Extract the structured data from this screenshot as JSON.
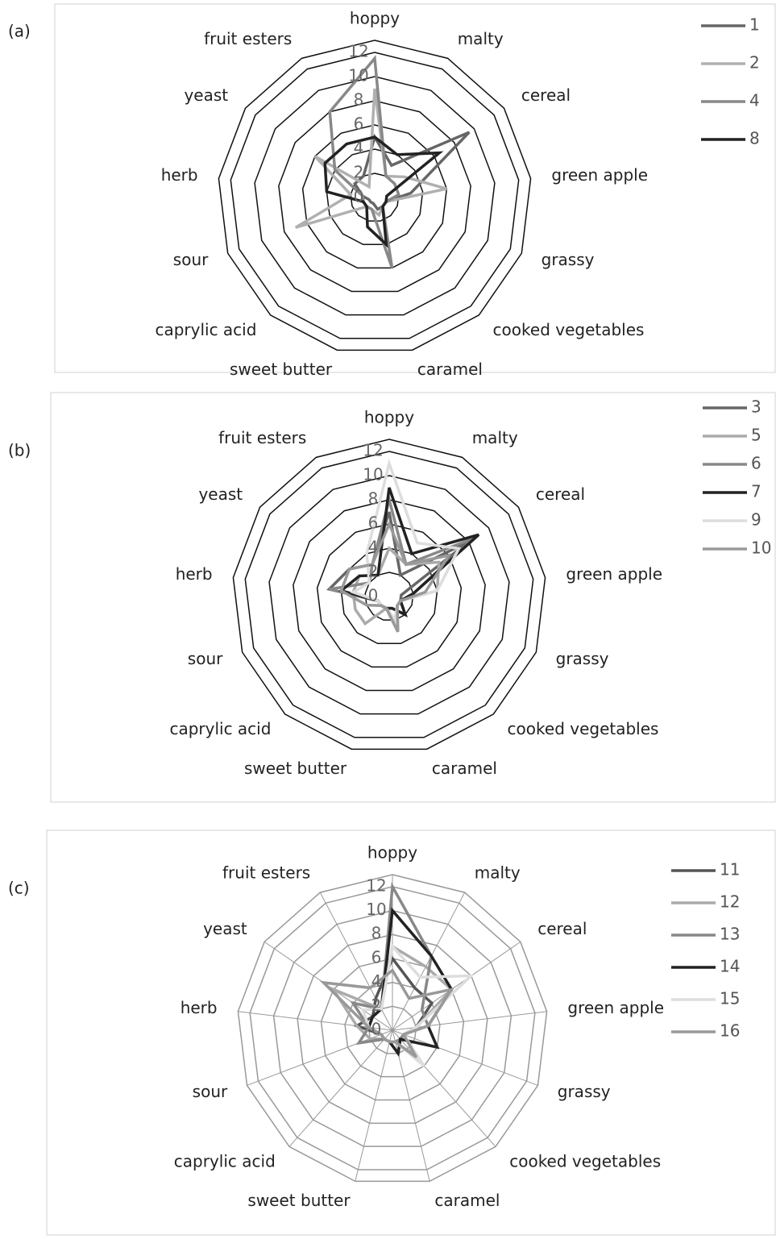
{
  "chart_data": [
    {
      "type": "radar",
      "label": "(a)",
      "categories": [
        "hoppy",
        "malty",
        "cereal",
        "green apple",
        "grassy",
        "cooked vegetables",
        "caramel",
        "sweet butter",
        "caprylic acid",
        "sour",
        "herb",
        "yeast",
        "fruit esters"
      ],
      "rlim": [
        0,
        13
      ],
      "rticks": [
        0,
        2,
        4,
        6,
        8,
        10,
        12
      ],
      "spokes": false,
      "series": [
        {
          "name": "1",
          "color": "#666666",
          "values": [
            5,
            3,
            9.5,
            3,
            1,
            1,
            1,
            0.5,
            0.5,
            0.5,
            1,
            2,
            2
          ]
        },
        {
          "name": "2",
          "color": "#b0b0b0",
          "values": [
            9,
            2,
            3,
            6,
            1,
            1,
            1.5,
            1,
            1,
            7,
            2,
            6,
            1
          ]
        },
        {
          "name": "4",
          "color": "#888888",
          "values": [
            11.5,
            2,
            2,
            2,
            1,
            1,
            6,
            1,
            1,
            1,
            1,
            4,
            8
          ]
        },
        {
          "name": "8",
          "color": "#222222",
          "values": [
            5,
            4,
            6.5,
            1,
            1,
            1,
            4,
            2.5,
            1,
            1,
            4,
            5,
            5
          ]
        }
      ]
    },
    {
      "type": "radar",
      "label": "(b)",
      "categories": [
        "hoppy",
        "malty",
        "cereal",
        "green apple",
        "grassy",
        "cooked vegetables",
        "caramel",
        "sweet butter",
        "caprylic acid",
        "sour",
        "herb",
        "yeast",
        "fruit esters"
      ],
      "rlim": [
        0,
        13
      ],
      "rticks": [
        0,
        2,
        4,
        6,
        8,
        10,
        12
      ],
      "spokes": false,
      "series": [
        {
          "name": "3",
          "color": "#666666",
          "values": [
            7,
            2,
            8,
            1,
            1,
            2,
            1,
            1,
            1,
            1,
            5,
            4,
            3
          ]
        },
        {
          "name": "5",
          "color": "#aaaaaa",
          "values": [
            4,
            3,
            5,
            4,
            1,
            1,
            3,
            1,
            3,
            3,
            3,
            3,
            2
          ]
        },
        {
          "name": "6",
          "color": "#888888",
          "values": [
            8,
            3,
            8.5,
            2,
            1,
            1,
            2,
            1,
            1,
            1,
            5,
            2,
            3
          ]
        },
        {
          "name": "7",
          "color": "#222222",
          "values": [
            9,
            4,
            9,
            2,
            1,
            2,
            1,
            1,
            1,
            1,
            4,
            3,
            2
          ]
        },
        {
          "name": "9",
          "color": "#dddddd",
          "values": [
            11,
            5,
            7,
            4,
            1,
            1,
            2,
            1,
            1,
            1,
            3,
            2,
            4
          ]
        },
        {
          "name": "10",
          "color": "#999999",
          "values": [
            6,
            3,
            6,
            3,
            1,
            1,
            3,
            1,
            1,
            2,
            4,
            4,
            3
          ]
        }
      ]
    },
    {
      "type": "radar",
      "label": "(c)",
      "categories": [
        "hoppy",
        "malty",
        "cereal",
        "green apple",
        "grassy",
        "cooked vegetables",
        "caramel",
        "sweet butter",
        "caprylic acid",
        "sour",
        "herb",
        "yeast",
        "fruit esters"
      ],
      "rlim": [
        0,
        13
      ],
      "rticks": [
        0,
        2,
        4,
        6,
        8,
        10,
        12
      ],
      "spokes": true,
      "series": [
        {
          "name": "11",
          "color": "#555555",
          "values": [
            6,
            4,
            4,
            2,
            1,
            1,
            1,
            1,
            1,
            1,
            3,
            2,
            3
          ]
        },
        {
          "name": "12",
          "color": "#aaaaaa",
          "values": [
            7,
            6,
            6,
            2,
            1,
            1,
            1,
            1,
            1,
            2,
            3,
            6,
            2
          ]
        },
        {
          "name": "13",
          "color": "#888888",
          "values": [
            12,
            7,
            3,
            3,
            1,
            1,
            1,
            1,
            1,
            3,
            2,
            4,
            2
          ]
        },
        {
          "name": "14",
          "color": "#222222",
          "values": [
            10,
            7,
            6,
            3,
            4,
            1,
            2,
            1,
            1,
            1,
            2,
            2,
            2
          ]
        },
        {
          "name": "15",
          "color": "#dddddd",
          "values": [
            7,
            5,
            8,
            2,
            1,
            4,
            1,
            1,
            1,
            1,
            2,
            3,
            2
          ]
        },
        {
          "name": "16",
          "color": "#999999",
          "values": [
            5,
            3,
            6,
            3,
            1,
            3,
            1,
            1,
            1,
            1,
            2,
            7,
            4
          ]
        }
      ]
    }
  ]
}
